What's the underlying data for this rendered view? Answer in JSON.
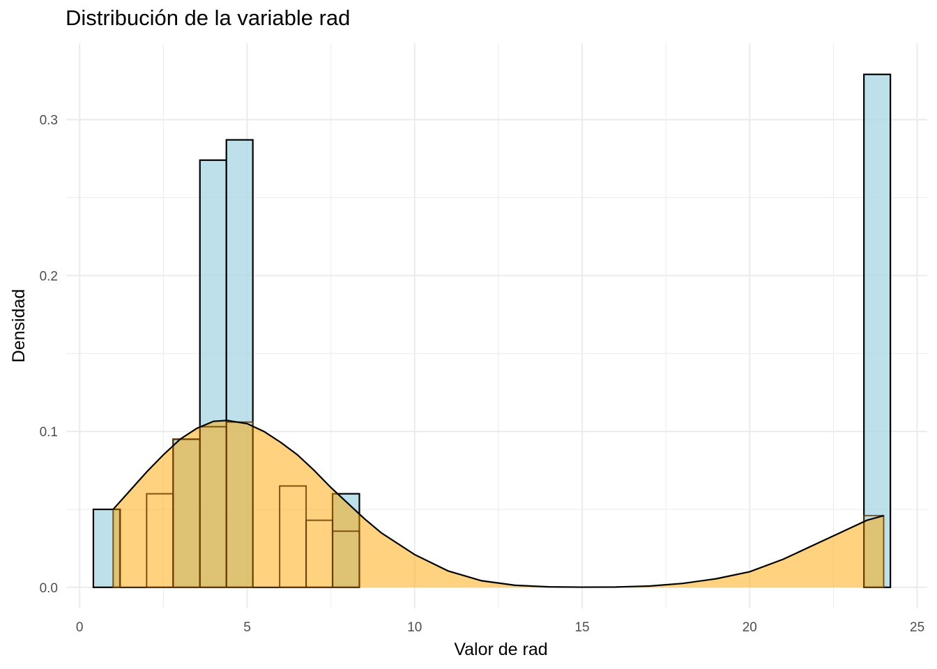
{
  "chart_data": {
    "type": "bar",
    "title": "Distribución de la variable rad",
    "xlabel": "Valor de rad",
    "ylabel": "Densidad",
    "xlim": [
      -0.4,
      25.3
    ],
    "ylim": [
      -0.0135,
      0.349
    ],
    "x_ticks": [
      0,
      5,
      10,
      15,
      20,
      25
    ],
    "x_tick_labels": [
      "0",
      "5",
      "10",
      "15",
      "20",
      "25"
    ],
    "y_ticks": [
      0.0,
      0.1,
      0.2,
      0.3
    ],
    "y_tick_labels": [
      "0.0",
      "0.1",
      "0.2",
      "0.3"
    ],
    "grid": true,
    "colors": {
      "histogram_fill": "#add8e6",
      "density_fill": "#ffa500",
      "outline": "#000000",
      "grid": "#ebebeb"
    },
    "histogram": {
      "name": "histograma",
      "bins": [
        {
          "x0": 0.41,
          "x1": 1.21,
          "density": 0.05
        },
        {
          "x0": 1.21,
          "x1": 2.0,
          "density": 0.0
        },
        {
          "x0": 2.0,
          "x1": 2.79,
          "density": 0.0
        },
        {
          "x0": 2.79,
          "x1": 3.59,
          "density": 0.095
        },
        {
          "x0": 3.59,
          "x1": 4.38,
          "density": 0.274
        },
        {
          "x0": 4.38,
          "x1": 5.17,
          "density": 0.287
        },
        {
          "x0": 5.17,
          "x1": 5.97,
          "density": 0.0
        },
        {
          "x0": 5.97,
          "x1": 6.76,
          "density": 0.0
        },
        {
          "x0": 6.76,
          "x1": 7.55,
          "density": 0.0
        },
        {
          "x0": 7.55,
          "x1": 8.35,
          "density": 0.06
        },
        {
          "x0": 23.41,
          "x1": 24.2,
          "density": 0.329
        }
      ]
    },
    "density_histogram": {
      "name": "densidad_barras",
      "bins": [
        {
          "x0": 1.0,
          "x1": 1.2,
          "density": 0.05
        },
        {
          "x0": 2.0,
          "x1": 2.79,
          "density": 0.06
        },
        {
          "x0": 2.79,
          "x1": 3.59,
          "density": 0.095
        },
        {
          "x0": 3.59,
          "x1": 4.38,
          "density": 0.103
        },
        {
          "x0": 4.38,
          "x1": 5.17,
          "density": 0.106
        },
        {
          "x0": 5.97,
          "x1": 6.76,
          "density": 0.065
        },
        {
          "x0": 6.76,
          "x1": 7.55,
          "density": 0.043
        },
        {
          "x0": 7.55,
          "x1": 8.35,
          "density": 0.036
        },
        {
          "x0": 23.41,
          "x1": 24.0,
          "density": 0.046
        }
      ]
    },
    "density_curve": {
      "name": "densidad",
      "x": [
        1.0,
        1.5,
        2.0,
        2.5,
        3.0,
        3.5,
        4.0,
        4.4,
        5.0,
        5.5,
        6.0,
        6.5,
        7.0,
        7.5,
        8.0,
        8.5,
        9.0,
        10.0,
        11.0,
        12.0,
        13.0,
        14.0,
        15.0,
        16.0,
        17.0,
        18.0,
        19.0,
        20.0,
        21.0,
        22.0,
        23.0,
        23.5,
        24.0
      ],
      "y": [
        0.05,
        0.062,
        0.074,
        0.085,
        0.095,
        0.102,
        0.1065,
        0.107,
        0.105,
        0.1,
        0.093,
        0.085,
        0.075,
        0.064,
        0.054,
        0.044,
        0.035,
        0.021,
        0.0105,
        0.0042,
        0.0013,
        0.0003,
        0.0001,
        0.0002,
        0.0008,
        0.0025,
        0.0055,
        0.01,
        0.018,
        0.028,
        0.038,
        0.043,
        0.046
      ]
    }
  }
}
